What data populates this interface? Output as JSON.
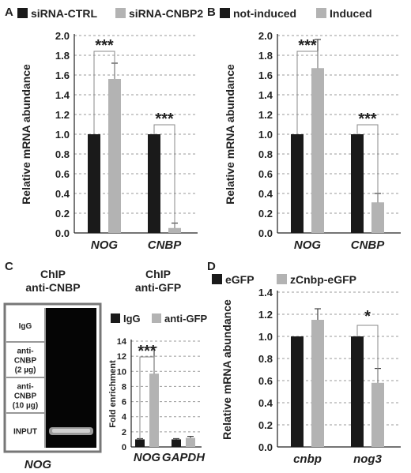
{
  "panels": {
    "A": {
      "letter": "A"
    },
    "B": {
      "letter": "B"
    },
    "C": {
      "letter": "C",
      "gel_title": [
        "ChIP",
        "anti-CNBP"
      ],
      "chart_title": [
        "ChIP",
        "anti-GFP"
      ],
      "gel_lanes": [
        [
          "IgG"
        ],
        [
          "anti-",
          "CNBP",
          "(2 µg)"
        ],
        [
          "anti-",
          "CNBP",
          "(10 µg)"
        ],
        [
          "INPUT"
        ]
      ],
      "gel_gene": "NOG"
    },
    "D": {
      "letter": "D"
    }
  },
  "colors": {
    "dark": "#1a1a1a",
    "light": "#b3b3b3",
    "error": "#444444",
    "grid": "#999999",
    "gel": "#050505"
  },
  "chart_data": [
    {
      "id": "A",
      "type": "bar",
      "categories": [
        "NOG",
        "CNBP"
      ],
      "series": [
        {
          "name": "siRNA-CTRL",
          "values": [
            1.0,
            1.0
          ],
          "errors": [
            0,
            0
          ]
        },
        {
          "name": "siRNA-CNBP2",
          "values": [
            1.56,
            0.05
          ],
          "errors": [
            0.16,
            0.05
          ]
        }
      ],
      "ylabel": "Relative mRNA abundance",
      "ylim": [
        0,
        2.0
      ],
      "yticks": [
        "0.0",
        "0.2",
        "0.4",
        "0.6",
        "0.8",
        "1.0",
        "1.2",
        "1.4",
        "1.6",
        "1.8",
        "2.0"
      ],
      "grid": true,
      "significance": [
        "***",
        "***"
      ]
    },
    {
      "id": "B",
      "type": "bar",
      "categories": [
        "NOG",
        "CNBP"
      ],
      "series": [
        {
          "name": "not-induced",
          "values": [
            1.0,
            1.0
          ],
          "errors": [
            0,
            0
          ]
        },
        {
          "name": "Induced",
          "values": [
            1.67,
            0.31
          ],
          "errors": [
            0.29,
            0.09
          ]
        }
      ],
      "ylabel": "Relative mRNA abundance",
      "ylim": [
        0,
        2.0
      ],
      "yticks": [
        "0.0",
        "0.2",
        "0.4",
        "0.6",
        "0.8",
        "1.0",
        "1.2",
        "1.4",
        "1.6",
        "1.8",
        "2.0"
      ],
      "grid": true,
      "significance": [
        "***",
        "***"
      ]
    },
    {
      "id": "C",
      "type": "bar",
      "categories": [
        "NOG",
        "GAPDH"
      ],
      "series": [
        {
          "name": "IgG",
          "values": [
            1.0,
            1.0
          ],
          "errors": [
            0.1,
            0.1
          ]
        },
        {
          "name": "anti-GFP",
          "values": [
            9.7,
            1.2
          ],
          "errors": [
            3.5,
            0.2
          ]
        }
      ],
      "ylabel": "Fold enrichment",
      "ylim": [
        0,
        14
      ],
      "yticks": [
        "0",
        "2",
        "4",
        "6",
        "8",
        "10",
        "12",
        "14"
      ],
      "grid": true,
      "significance": [
        "***",
        ""
      ]
    },
    {
      "id": "D",
      "type": "bar",
      "categories": [
        "cnbp",
        "nog3"
      ],
      "series": [
        {
          "name": "eGFP",
          "values": [
            1.0,
            1.0
          ],
          "errors": [
            0,
            0
          ]
        },
        {
          "name": "zCnbp-eGFP",
          "values": [
            1.15,
            0.58
          ],
          "errors": [
            0.1,
            0.13
          ]
        }
      ],
      "ylabel": "Relative mRNA abundance",
      "ylim": [
        0,
        1.4
      ],
      "yticks": [
        "0.0",
        "0.2",
        "0.4",
        "0.6",
        "0.8",
        "1.0",
        "1.2",
        "1.4"
      ],
      "grid": true,
      "significance": [
        "",
        "*"
      ]
    }
  ]
}
